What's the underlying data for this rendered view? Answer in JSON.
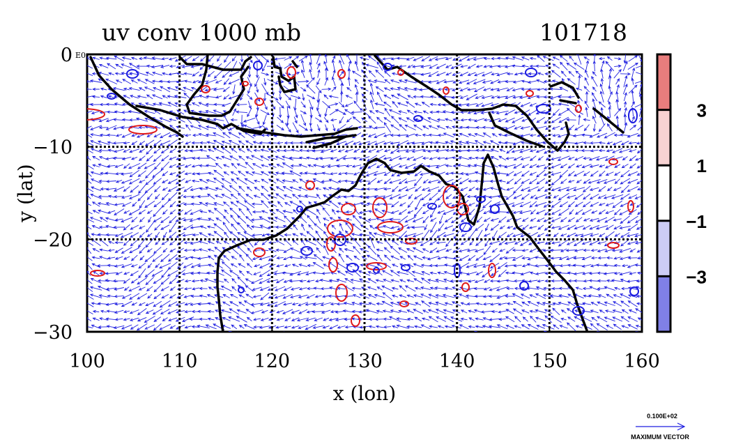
{
  "chart_data": {
    "type": "vector-contour-map",
    "title": "uv conv 1000 mb",
    "subtitle": "101718",
    "xlabel": "x (lon)",
    "ylabel": "y (lat)",
    "xlim": [
      100,
      160
    ],
    "ylim": [
      -30,
      0
    ],
    "x_ticks": [
      {
        "value": 100,
        "label": "100"
      },
      {
        "value": 110,
        "label": "110"
      },
      {
        "value": 120,
        "label": "120"
      },
      {
        "value": 130,
        "label": "130"
      },
      {
        "value": 140,
        "label": "140"
      },
      {
        "value": 150,
        "label": "150"
      },
      {
        "value": 160,
        "label": "160"
      }
    ],
    "y_ticks": [
      {
        "value": 0,
        "label": "0"
      },
      {
        "value": -10,
        "label": "−10"
      },
      {
        "value": -20,
        "label": "−20"
      },
      {
        "value": -30,
        "label": "−30"
      }
    ],
    "y_top_suffix": "E0",
    "grid": true,
    "colorbar": {
      "levels": [
        {
          "label": "3",
          "level": 3
        },
        {
          "label": "1",
          "level": 1
        },
        {
          "label": "−1",
          "level": -1
        },
        {
          "label": "−3",
          "level": -3
        }
      ],
      "bands": [
        {
          "from": 3,
          "to": 5,
          "color": "#e87d7d"
        },
        {
          "from": 1,
          "to": 3,
          "color": "#f7d2d2"
        },
        {
          "from": -1,
          "to": 1,
          "color": "#ffffff"
        },
        {
          "from": -3,
          "to": -1,
          "color": "#ccccf5"
        },
        {
          "from": -5,
          "to": -3,
          "color": "#8080e6"
        }
      ]
    },
    "vector_color": "#1f1fe0",
    "positive_contour_color": "#e01a1a",
    "negative_contour_color": "#1a1ae0",
    "coast_color": "#000000",
    "reference_vector": {
      "value_label": "0.100E+02",
      "caption": "MAXIMUM VECTOR"
    }
  }
}
